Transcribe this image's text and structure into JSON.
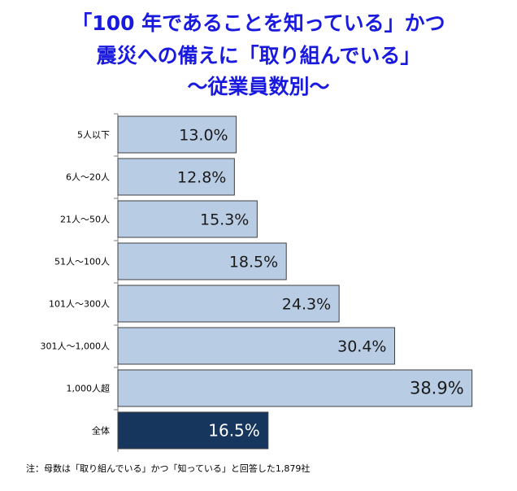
{
  "title": {
    "line1": "「100 年であることを知っている」かつ",
    "line2": "震災への備えに「取り組んでいる」",
    "line3": "～従業員数別～"
  },
  "footnote": "注：母数は「取り組んでいる」かつ「知っている」と回答した1,879社",
  "colors": {
    "bar": "#b8cce4",
    "total_bar": "#17365d",
    "title": "#1a1adf"
  },
  "chart_data": {
    "type": "bar",
    "orientation": "horizontal",
    "categories": [
      "5人以下",
      "6人～20人",
      "21人～50人",
      "51人～100人",
      "101人～300人",
      "301人～1,000人",
      "1,000人超",
      "全体"
    ],
    "values": [
      13.0,
      12.8,
      15.3,
      18.5,
      24.3,
      30.4,
      38.9,
      16.5
    ],
    "labels": [
      "13.0%",
      "12.8%",
      "15.3%",
      "18.5%",
      "24.3%",
      "30.4%",
      "38.9%",
      "16.5%"
    ],
    "highlight_index": 7,
    "xlim": [
      0,
      40
    ],
    "grid": false
  }
}
